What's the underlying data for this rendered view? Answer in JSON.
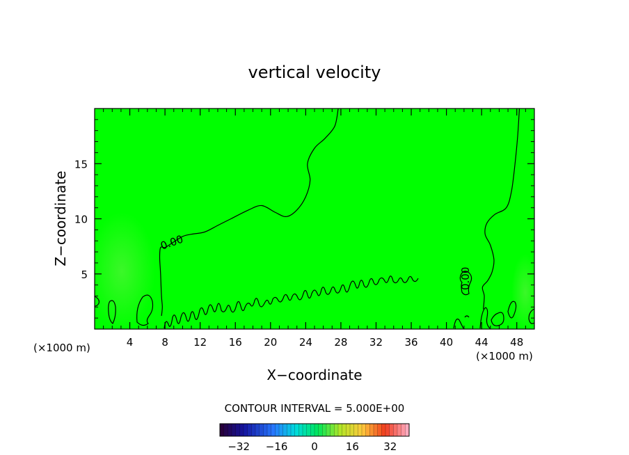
{
  "chart_data": {
    "type": "heatmap",
    "title": "vertical velocity",
    "xlabel": "X−coordinate",
    "ylabel": "Z−coordinate",
    "x_unit_left": "(×1000 m)",
    "x_unit_right": "(×1000 m)",
    "xlim": [
      0,
      50
    ],
    "ylim": [
      0,
      20
    ],
    "x_ticks": [
      "4",
      "8",
      "12",
      "16",
      "20",
      "24",
      "28",
      "32",
      "36",
      "40",
      "44",
      "48"
    ],
    "y_ticks": [
      "5",
      "10",
      "15"
    ],
    "contour_labels": [
      "0.00",
      "0.00"
    ],
    "field_color": "#00ff00",
    "contour_interval_text": "CONTOUR INTERVAL = 5.000E+00",
    "colorbar": {
      "range": [
        -40,
        40
      ],
      "tick_labels": [
        "−32",
        "−16",
        "0",
        "16",
        "32"
      ],
      "tick_values": [
        -32,
        -16,
        0,
        16,
        32
      ]
    },
    "zero_contour_main": [
      [
        27.7,
        20
      ],
      [
        27.3,
        18.4
      ],
      [
        26.2,
        17.3
      ],
      [
        25.0,
        16.4
      ],
      [
        24.2,
        15.0
      ],
      [
        24.5,
        13.5
      ],
      [
        24.0,
        12.0
      ],
      [
        23.0,
        10.8
      ],
      [
        21.8,
        10.2
      ],
      [
        20.5,
        10.6
      ],
      [
        19.0,
        11.2
      ],
      [
        17.5,
        10.8
      ],
      [
        15.5,
        10.0
      ],
      [
        14.0,
        9.4
      ],
      [
        12.5,
        8.8
      ],
      [
        11.0,
        8.6
      ],
      [
        10.0,
        8.4
      ],
      [
        8.8,
        7.8
      ],
      [
        8.0,
        7.4
      ],
      [
        7.5,
        7.4
      ],
      [
        7.4,
        6.5
      ],
      [
        7.5,
        5.0
      ],
      [
        7.6,
        3.0
      ],
      [
        7.7,
        2.0
      ],
      [
        7.6,
        1.2
      ]
    ],
    "zero_contour_right": [
      [
        48.3,
        20
      ],
      [
        48.1,
        17.5
      ],
      [
        47.8,
        15.0
      ],
      [
        47.4,
        12.5
      ],
      [
        46.8,
        11.0
      ],
      [
        45.5,
        10.4
      ],
      [
        44.6,
        9.6
      ],
      [
        44.4,
        8.6
      ],
      [
        45.0,
        7.6
      ],
      [
        45.4,
        6.3
      ],
      [
        45.2,
        5.2
      ],
      [
        44.7,
        4.4
      ],
      [
        44.1,
        3.8
      ],
      [
        44.3,
        3.0
      ],
      [
        44.2,
        1.8
      ]
    ]
  }
}
